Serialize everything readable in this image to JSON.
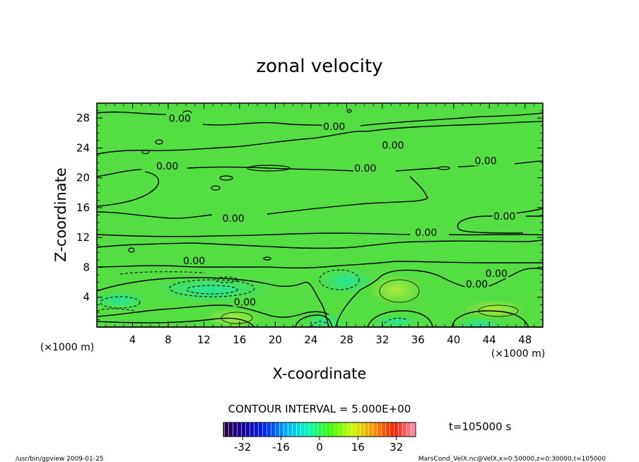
{
  "chart_data": {
    "type": "heatmap",
    "title": "zonal velocity",
    "xlabel": "X-coordinate",
    "ylabel": "Z-coordinate",
    "x_unit": "(×1000 m)",
    "y_unit": "(×1000 m)",
    "x_unit_right": "(×1000 m)",
    "xlim": [
      0,
      50
    ],
    "ylim": [
      0,
      30
    ],
    "x_ticks": [
      4,
      8,
      12,
      16,
      20,
      24,
      28,
      32,
      36,
      40,
      44,
      48
    ],
    "y_ticks": [
      4,
      8,
      12,
      16,
      20,
      24,
      28
    ],
    "contour_interval_label": "CONTOUR INTERVAL = 5.000E+00",
    "contour_labels": [
      {
        "x": 9.3,
        "z": 27.6,
        "text": "0.00"
      },
      {
        "x": 26.6,
        "z": 26.5,
        "text": "0.00"
      },
      {
        "x": 33.2,
        "z": 24.0,
        "text": "0.00"
      },
      {
        "x": 7.9,
        "z": 21.2,
        "text": "0.00"
      },
      {
        "x": 30.1,
        "z": 20.9,
        "text": "0.00"
      },
      {
        "x": 43.6,
        "z": 21.9,
        "text": "0.00"
      },
      {
        "x": 15.3,
        "z": 14.2,
        "text": "0.00"
      },
      {
        "x": 36.9,
        "z": 12.3,
        "text": "0.00"
      },
      {
        "x": 45.7,
        "z": 14.5,
        "text": "0.00"
      },
      {
        "x": 10.9,
        "z": 8.5,
        "text": "0.00"
      },
      {
        "x": 44.8,
        "z": 6.8,
        "text": "0.00"
      },
      {
        "x": 42.6,
        "z": 5.4,
        "text": "0.00"
      },
      {
        "x": 16.6,
        "z": 3.0,
        "text": "0.00"
      }
    ],
    "colorbar": {
      "vmin": -40,
      "vmax": 40,
      "tick_values": [
        -32,
        -16,
        0,
        16,
        32
      ],
      "tick_labels": [
        "-32",
        "-16",
        "0",
        "16",
        "32"
      ],
      "colormap": [
        "#28003c",
        "#1400a0",
        "#0028ff",
        "#00b4ff",
        "#00ffb4",
        "#3cff00",
        "#c8ff00",
        "#ff9600",
        "#ff1e00",
        "#ff96b4"
      ]
    },
    "background_color": "#55dd44"
  },
  "annotations": {
    "time": "t=105000 s",
    "footer_left": "/usr/bin/gpview  2009-01-25",
    "footer_right": "MarsCond_VelX.nc@VelX,x=0:50000,z=0:30000,t=105000"
  }
}
